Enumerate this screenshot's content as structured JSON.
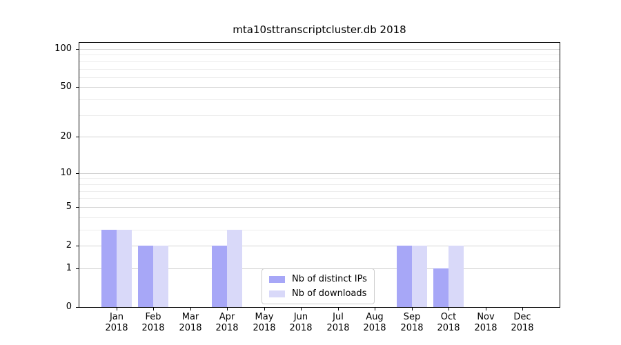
{
  "title": "mta10sttranscriptcluster.db 2018",
  "legend": {
    "items": [
      {
        "label": "Nb of distinct IPs",
        "color": "#a7a7f7"
      },
      {
        "label": "Nb of downloads",
        "color": "#d9d9f9"
      }
    ]
  },
  "colors": {
    "bar_distinct_ips": "#a7a7f7",
    "bar_downloads": "#d9d9f9",
    "major_gridline": "#d2d2d2",
    "minor_gridline": "#ededed",
    "axis": "#000000",
    "background": "#ffffff",
    "legend_border": "#cccccc"
  },
  "chart_data": {
    "type": "bar",
    "title": "mta10sttranscriptcluster.db 2018",
    "xlabel": "",
    "ylabel": "",
    "categories": [
      {
        "month": "Jan",
        "year": "2018"
      },
      {
        "month": "Feb",
        "year": "2018"
      },
      {
        "month": "Mar",
        "year": "2018"
      },
      {
        "month": "Apr",
        "year": "2018"
      },
      {
        "month": "May",
        "year": "2018"
      },
      {
        "month": "Jun",
        "year": "2018"
      },
      {
        "month": "Jul",
        "year": "2018"
      },
      {
        "month": "Aug",
        "year": "2018"
      },
      {
        "month": "Sep",
        "year": "2018"
      },
      {
        "month": "Oct",
        "year": "2018"
      },
      {
        "month": "Nov",
        "year": "2018"
      },
      {
        "month": "Dec",
        "year": "2018"
      }
    ],
    "series": [
      {
        "name": "Nb of distinct IPs",
        "color": "#a7a7f7",
        "values": [
          3,
          2,
          0,
          2,
          0,
          0,
          0,
          0,
          2,
          1,
          0,
          0
        ]
      },
      {
        "name": "Nb of downloads",
        "color": "#d9d9f9",
        "values": [
          3,
          2,
          0,
          3,
          0,
          0,
          0,
          0,
          2,
          2,
          0,
          0
        ]
      }
    ],
    "yscale": "log1p",
    "yticks": [
      0,
      1,
      2,
      5,
      10,
      20,
      50,
      100
    ],
    "minor_yticks": [
      3,
      4,
      6,
      7,
      8,
      9,
      30,
      40,
      60,
      70,
      80,
      90
    ],
    "ylim": [
      0,
      112
    ],
    "grid": true,
    "legend_position": "lower center"
  }
}
